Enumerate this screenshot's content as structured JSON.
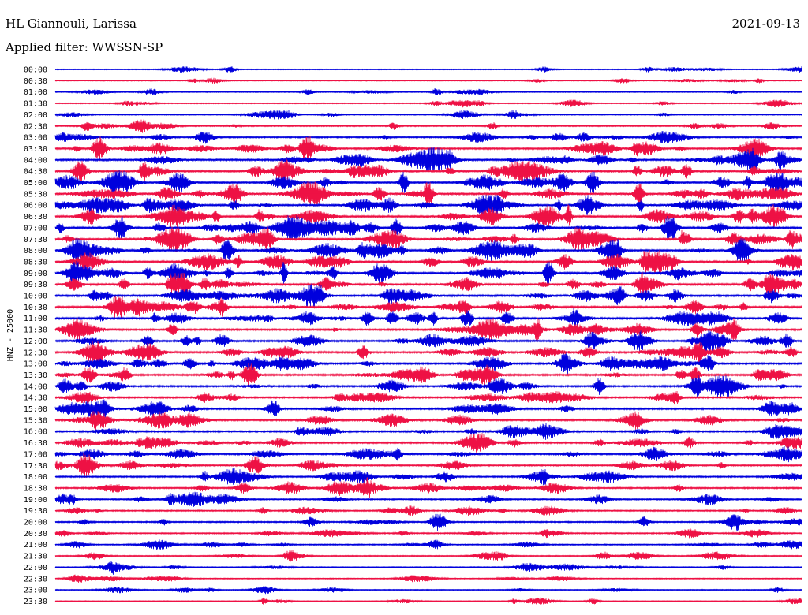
{
  "header": {
    "station": "HL Giannouli, Larissa",
    "date": "2021-09-13",
    "filter": "Applied filter: WWSSN-SP"
  },
  "chart_data": {
    "type": "line",
    "chart_kind": "helicorder",
    "ylabel": "HNZ - 25000",
    "row_labels": [
      "00:00",
      "00:30",
      "01:00",
      "01:30",
      "02:00",
      "02:30",
      "03:00",
      "03:30",
      "04:00",
      "04:30",
      "05:00",
      "05:30",
      "06:00",
      "06:30",
      "07:00",
      "07:30",
      "08:00",
      "08:30",
      "09:00",
      "09:30",
      "10:00",
      "10:30",
      "11:00",
      "11:30",
      "12:00",
      "12:30",
      "13:00",
      "13:30",
      "14:00",
      "14:30",
      "15:00",
      "15:30",
      "16:00",
      "16:30",
      "17:00",
      "17:30",
      "18:00",
      "18:30",
      "19:00",
      "19:30",
      "20:00",
      "20:30",
      "21:00",
      "21:30",
      "22:00",
      "22:30",
      "23:00",
      "23:30"
    ],
    "colors": [
      "#0000dd",
      "#ee1144"
    ],
    "color_pattern": "alternating per row, starting blue",
    "row_activity": [
      0.15,
      0.15,
      0.2,
      0.2,
      0.3,
      0.4,
      0.6,
      0.8,
      0.9,
      0.9,
      1.0,
      1.0,
      1.0,
      1.0,
      1.0,
      1.0,
      1.0,
      1.0,
      1.0,
      1.0,
      0.9,
      0.9,
      0.9,
      0.8,
      0.8,
      0.8,
      0.8,
      0.8,
      0.75,
      0.7,
      0.7,
      0.7,
      0.7,
      0.7,
      0.65,
      0.6,
      0.6,
      0.6,
      0.55,
      0.5,
      0.5,
      0.45,
      0.4,
      0.35,
      0.3,
      0.25,
      0.2,
      0.15
    ],
    "legend": "none",
    "grid": false
  }
}
